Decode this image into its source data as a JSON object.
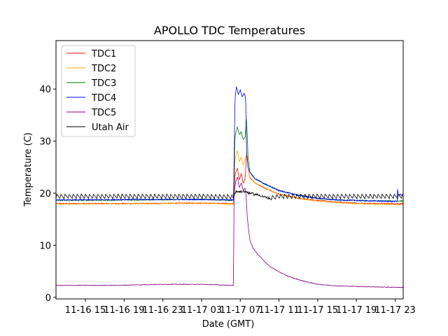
{
  "chart_data": {
    "type": "line",
    "title": "APOLLO TDC Temperatures",
    "xlabel": "Date (GMT)",
    "ylabel": "Temperature (C)",
    "x_units": "hours since 11-16 15:00 GMT",
    "xlim": [
      -3.04,
      32.83
    ],
    "ylim": [
      -0.3,
      49.3
    ],
    "xticks": [
      0,
      4,
      8,
      12,
      16,
      20,
      24,
      28,
      32
    ],
    "xtick_labels": [
      "11-16 15",
      "11-16 19",
      "11-16 23",
      "11-17 03",
      "11-17 07",
      "11-17 11",
      "11-17 15",
      "11-17 19",
      "11-17 23"
    ],
    "yticks": [
      0,
      10,
      20,
      30,
      40
    ],
    "ytick_labels": [
      "0",
      "10",
      "20",
      "30",
      "40"
    ],
    "grid": false,
    "legend_position": "top-left",
    "series": [
      {
        "name": "TDC1",
        "color": "#ff0000",
        "noise": 0.12,
        "x": [
          -3.04,
          5,
          12,
          15.3,
          15.45,
          15.7,
          15.9,
          16.1,
          16.3,
          16.5,
          16.65,
          16.8,
          17.0,
          17.5,
          18.5,
          20,
          22,
          24,
          26,
          28,
          30,
          32.83
        ],
        "y": [
          18.0,
          18.0,
          18.1,
          18.0,
          23.5,
          24.8,
          22.5,
          23.8,
          21.8,
          22.8,
          27.5,
          25.0,
          23.0,
          22.0,
          21.0,
          19.8,
          19.0,
          18.6,
          18.3,
          18.1,
          18.0,
          18.0
        ]
      },
      {
        "name": "TDC2",
        "color": "#ffa500",
        "noise": 0.12,
        "x": [
          -3.04,
          5,
          12,
          15.3,
          15.45,
          15.7,
          15.9,
          16.1,
          16.3,
          16.5,
          16.65,
          16.8,
          17.0,
          17.5,
          18.5,
          20,
          22,
          24,
          26,
          28,
          30,
          32.83
        ],
        "y": [
          17.9,
          18.0,
          18.1,
          17.9,
          26.5,
          28.2,
          26.0,
          27.0,
          25.2,
          26.5,
          27.8,
          25.0,
          23.0,
          22.0,
          21.0,
          19.8,
          19.0,
          18.5,
          18.2,
          18.0,
          17.9,
          17.8
        ]
      },
      {
        "name": "TDC3",
        "color": "#008000",
        "noise": 0.12,
        "x": [
          -3.04,
          5,
          12,
          15.3,
          15.45,
          15.7,
          15.9,
          16.1,
          16.3,
          16.5,
          16.65,
          16.8,
          17.0,
          17.5,
          18.5,
          20,
          22,
          24,
          26,
          28,
          30,
          32.2,
          32.25,
          32.83
        ],
        "y": [
          18.6,
          18.7,
          18.8,
          18.6,
          31.0,
          32.8,
          31.2,
          31.8,
          30.2,
          30.8,
          34.5,
          27.0,
          24.0,
          22.8,
          21.8,
          20.5,
          19.6,
          19.0,
          18.7,
          18.6,
          18.5,
          18.5,
          18.5,
          18.5
        ]
      },
      {
        "name": "TDC4",
        "color": "#0000ff",
        "noise": 0.12,
        "x": [
          -3.04,
          5,
          12,
          15.3,
          15.45,
          15.6,
          15.8,
          16.0,
          16.2,
          16.4,
          16.55,
          16.65,
          16.8,
          17.0,
          17.5,
          18.5,
          20,
          22,
          24,
          26,
          28,
          30,
          32.2,
          32.25,
          32.3,
          32.83
        ],
        "y": [
          18.7,
          18.8,
          18.8,
          18.7,
          38.0,
          40.5,
          39.0,
          39.8,
          38.5,
          39.2,
          38.5,
          28.0,
          25.0,
          24.0,
          22.8,
          21.8,
          20.5,
          19.6,
          19.0,
          18.7,
          18.6,
          18.5,
          18.4,
          21.3,
          19.7,
          19.7
        ]
      },
      {
        "name": "TDC5",
        "color": "#800080",
        "noise": 0.06,
        "x": [
          -3.04,
          3,
          8,
          12,
          15.3,
          15.35,
          15.5,
          15.7,
          15.9,
          16.1,
          16.3,
          16.5,
          16.6,
          16.7,
          16.85,
          17.0,
          17.3,
          17.7,
          18.3,
          19,
          20,
          21,
          22,
          23,
          24,
          26,
          28,
          30,
          32.83
        ],
        "y": [
          2.3,
          2.3,
          2.5,
          2.5,
          2.3,
          19.5,
          22.0,
          23.2,
          21.0,
          22.0,
          20.5,
          21.0,
          19.5,
          16.0,
          13.0,
          11.0,
          9.5,
          8.5,
          7.3,
          6.0,
          4.9,
          4.0,
          3.4,
          2.9,
          2.5,
          2.2,
          2.1,
          2.0,
          1.9
        ]
      },
      {
        "name": "Utah Air",
        "color": "#000000",
        "noise": 0.05,
        "sawtooth": 0.9,
        "sawtooth_period": 0.42,
        "x": [
          -3.04,
          12,
          15.3,
          15.5,
          16.5,
          17.0,
          18.0,
          19.0,
          20.0,
          32.83
        ],
        "y": [
          19.4,
          19.4,
          19.3,
          20.3,
          20.3,
          20.0,
          19.6,
          19.0,
          19.4,
          19.4
        ]
      }
    ]
  }
}
